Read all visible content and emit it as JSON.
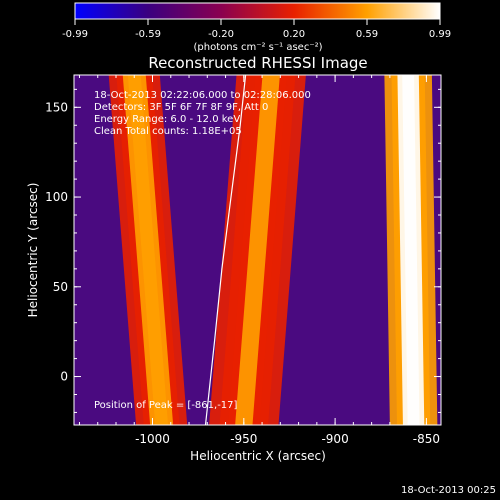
{
  "chart_data": {
    "type": "heatmap",
    "title": "Reconstructed RHESSI Image",
    "xlabel": "Heliocentric X (arcsec)",
    "ylabel": "Heliocentric Y (arcsec)",
    "xlim": [
      -1043,
      -842
    ],
    "ylim": [
      -27,
      168
    ],
    "x_ticks": [
      {
        "value": -1000,
        "label": "-1000"
      },
      {
        "value": -950,
        "label": "-950"
      },
      {
        "value": -900,
        "label": "-900"
      },
      {
        "value": -850,
        "label": "-850"
      }
    ],
    "y_ticks": [
      {
        "value": 0,
        "label": "0"
      },
      {
        "value": 50,
        "label": "50"
      },
      {
        "value": 100,
        "label": "100"
      },
      {
        "value": 150,
        "label": "150"
      }
    ],
    "colorbar": {
      "range": [
        -0.99,
        0.99
      ],
      "tick_labels": [
        "-0.99",
        "-0.59",
        "-0.20",
        "0.20",
        "0.59",
        "0.99"
      ],
      "units_label": "(photons cm⁻² s⁻¹ asec⁻²)",
      "colors": [
        "#0000ff",
        "#3a0080",
        "#8a0050",
        "#e82000",
        "#ffa000",
        "#ffffff"
      ]
    },
    "annotations": [
      "18-Oct-2013 02:22:06.000 to 02:28:06.000",
      "Detectors: 3F 5F 6F 7F 8F 9F, Att 0",
      "Energy Range: 6.0 - 12.0 keV",
      "Clean     Total counts: 1.18E+05"
    ],
    "peak_label": "Position of Peak = [-861,-17]",
    "peak": {
      "x": -861,
      "y": -17
    },
    "limb_curve": [
      [
        -971,
        -27
      ],
      [
        -966,
        20
      ],
      [
        -962,
        60
      ],
      [
        -957,
        100
      ],
      [
        -952,
        140
      ],
      [
        -949,
        168
      ]
    ],
    "emission_bands": [
      {
        "name": "left ridge",
        "x_at_bottom": -995,
        "x_at_top": -1010,
        "width": 28,
        "level": 0.55
      },
      {
        "name": "middle ridge",
        "x_at_bottom": -950,
        "x_at_top": -935,
        "width": 38,
        "level": 0.45
      },
      {
        "name": "right source",
        "x_at_bottom": -857,
        "x_at_top": -860,
        "width": 26,
        "level": 0.95
      }
    ]
  },
  "footer_date": "18-Oct-2013 00:25"
}
